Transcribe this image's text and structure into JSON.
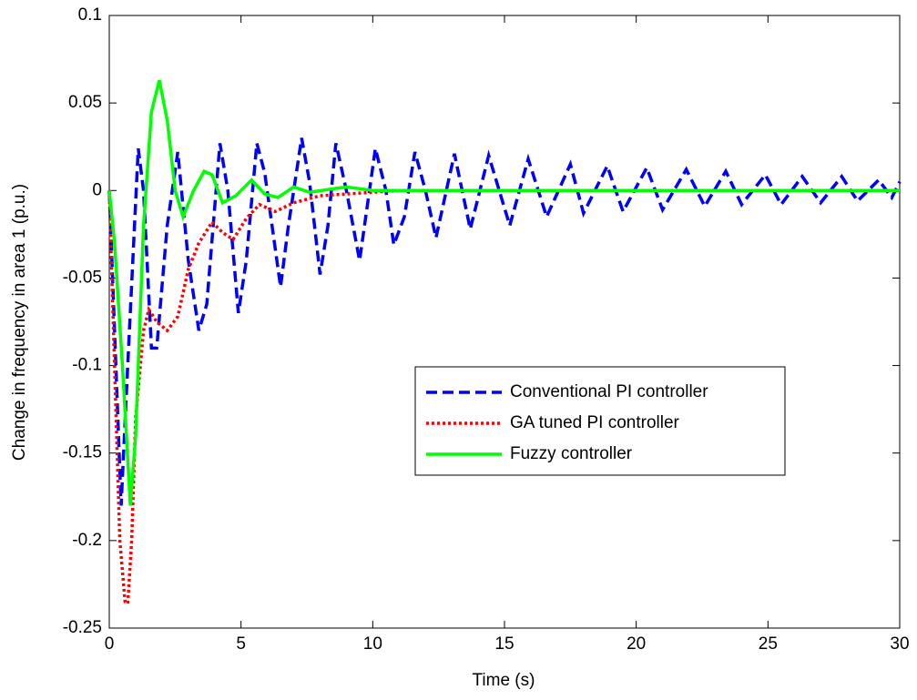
{
  "chart_data": {
    "type": "line",
    "x_label": "Time (s)",
    "y_label": "Change in frequency in area 1 (p.u.)",
    "xlim": [
      0,
      30
    ],
    "ylim": [
      -0.25,
      0.1
    ],
    "xticks": [
      0,
      5,
      10,
      15,
      20,
      25,
      30
    ],
    "yticks": [
      -0.25,
      -0.2,
      -0.15,
      -0.1,
      -0.05,
      0,
      0.05,
      0.1
    ],
    "grid": false,
    "legend_position": "center-right",
    "series": [
      {
        "name": "Conventional PI controller",
        "color": "#0000ff",
        "dash": "dashed",
        "x": [
          0,
          0.2,
          0.45,
          0.7,
          1.1,
          1.3,
          1.6,
          1.8,
          2.2,
          2.6,
          3.0,
          3.4,
          3.7,
          4.2,
          4.5,
          4.9,
          5.2,
          5.6,
          5.9,
          6.5,
          6.8,
          7.3,
          7.6,
          8.0,
          8.3,
          8.6,
          9.0,
          9.5,
          10.1,
          10.5,
          10.8,
          11.2,
          11.6,
          12.0,
          12.4,
          13.1,
          13.7,
          14.4,
          15.2,
          15.9,
          16.6,
          17.5,
          18.0,
          18.9,
          19.5,
          20.4,
          21.0,
          21.9,
          22.6,
          23.4,
          24.0,
          24.9,
          25.5,
          26.3,
          27.0,
          27.8,
          28.4,
          29.2,
          29.7,
          30
        ],
        "values": [
          0,
          -0.08,
          -0.18,
          -0.1,
          0.024,
          0.0,
          -0.09,
          -0.09,
          -0.02,
          0.022,
          -0.04,
          -0.08,
          -0.065,
          0.027,
          0,
          -0.07,
          -0.04,
          0.027,
          0.01,
          -0.055,
          -0.02,
          0.03,
          0.005,
          -0.048,
          -0.02,
          0.027,
          0,
          -0.04,
          0.024,
          0,
          -0.031,
          -0.015,
          0.022,
          0,
          -0.027,
          0.021,
          -0.022,
          0.02,
          -0.02,
          0.018,
          -0.015,
          0.015,
          -0.013,
          0.014,
          -0.012,
          0.013,
          -0.011,
          0.012,
          -0.009,
          0.011,
          -0.008,
          0.009,
          -0.008,
          0.008,
          -0.007,
          0.008,
          -0.006,
          0.006,
          -0.004,
          0.005
        ]
      },
      {
        "name": "GA tuned PI controller",
        "color": "#ff0000",
        "dash": "dotted",
        "x": [
          0,
          0.2,
          0.4,
          0.6,
          0.7,
          0.85,
          1.0,
          1.3,
          1.5,
          1.8,
          2.2,
          2.6,
          3.0,
          3.4,
          3.9,
          4.3,
          4.7,
          5.2,
          5.7,
          6.3,
          7,
          8,
          9,
          10,
          11,
          30
        ],
        "values": [
          0,
          -0.1,
          -0.2,
          -0.235,
          -0.236,
          -0.2,
          -0.13,
          -0.08,
          -0.068,
          -0.075,
          -0.08,
          -0.072,
          -0.045,
          -0.03,
          -0.018,
          -0.024,
          -0.028,
          -0.016,
          -0.008,
          -0.012,
          -0.007,
          -0.003,
          -0.002,
          -0.001,
          0,
          0
        ]
      },
      {
        "name": "Fuzzy controller",
        "color": "#00ff00",
        "dash": "solid",
        "x": [
          0,
          0.2,
          0.5,
          0.8,
          1.0,
          1.3,
          1.6,
          1.9,
          2.2,
          2.5,
          2.8,
          3.2,
          3.6,
          3.9,
          4.3,
          4.8,
          5.4,
          5.9,
          6.4,
          7.0,
          7.6,
          8.5,
          9,
          10,
          30
        ],
        "values": [
          0,
          -0.03,
          -0.1,
          -0.18,
          -0.14,
          -0.02,
          0.045,
          0.063,
          0.04,
          0.0,
          -0.015,
          0.0,
          0.011,
          0.009,
          -0.007,
          -0.003,
          0.006,
          -0.002,
          -0.004,
          0.002,
          -0.001,
          0.001,
          0.002,
          0,
          0
        ]
      }
    ]
  }
}
